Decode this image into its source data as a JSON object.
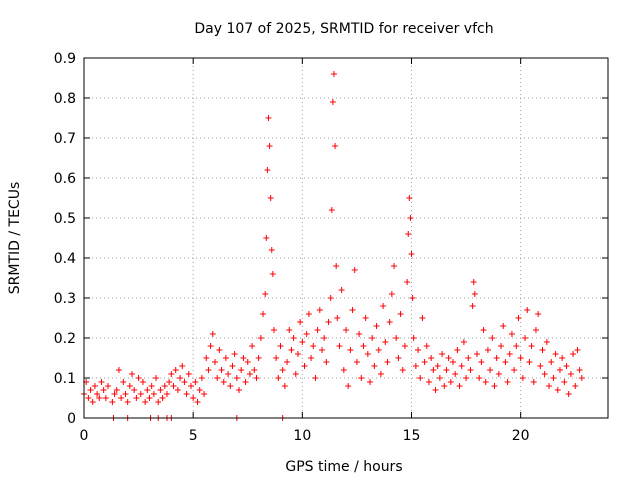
{
  "chart_data": {
    "type": "scatter",
    "title": "Day 107 of 2025, SRMTID for receiver vfch",
    "xlabel": "GPS time / hours",
    "ylabel": "SRMTID / TECUs",
    "xlim": [
      0,
      24
    ],
    "ylim": [
      0,
      0.9
    ],
    "xticks": [
      0,
      5,
      10,
      15,
      20
    ],
    "yticks": [
      0,
      0.1,
      0.2,
      0.3,
      0.4,
      0.5,
      0.6,
      0.7,
      0.8,
      0.9
    ],
    "xtick_labels": [
      "0",
      "5",
      "10",
      "15",
      "20"
    ],
    "ytick_labels": [
      "0",
      "0.1",
      "0.2",
      "0.3",
      "0.4",
      "0.5",
      "0.6",
      "0.7",
      "0.8",
      "0.9"
    ],
    "grid": true,
    "series": [
      {
        "name": "SRMTID",
        "marker": "plus",
        "color": "#ff0000",
        "points": [
          [
            0.0,
            0.06
          ],
          [
            0.1,
            0.09
          ],
          [
            0.2,
            0.05
          ],
          [
            0.3,
            0.07
          ],
          [
            0.4,
            0.04
          ],
          [
            0.5,
            0.08
          ],
          [
            0.6,
            0.06
          ],
          [
            0.7,
            0.05
          ],
          [
            0.8,
            0.09
          ],
          [
            0.9,
            0.07
          ],
          [
            1.0,
            0.05
          ],
          [
            1.1,
            0.08
          ],
          [
            1.3,
            0.04
          ],
          [
            1.4,
            0.06
          ],
          [
            1.5,
            0.07
          ],
          [
            1.6,
            0.12
          ],
          [
            1.7,
            0.05
          ],
          [
            1.8,
            0.09
          ],
          [
            1.9,
            0.06
          ],
          [
            2.0,
            0.04
          ],
          [
            2.1,
            0.08
          ],
          [
            2.2,
            0.11
          ],
          [
            2.3,
            0.07
          ],
          [
            2.4,
            0.05
          ],
          [
            2.5,
            0.1
          ],
          [
            2.6,
            0.06
          ],
          [
            2.7,
            0.09
          ],
          [
            2.8,
            0.04
          ],
          [
            2.9,
            0.07
          ],
          [
            3.0,
            0.05
          ],
          [
            3.1,
            0.08
          ],
          [
            3.2,
            0.06
          ],
          [
            3.3,
            0.1
          ],
          [
            3.4,
            0.04
          ],
          [
            3.5,
            0.07
          ],
          [
            3.6,
            0.05
          ],
          [
            3.7,
            0.08
          ],
          [
            3.8,
            0.06
          ],
          [
            3.9,
            0.09
          ],
          [
            4.0,
            0.11
          ],
          [
            4.1,
            0.08
          ],
          [
            4.2,
            0.12
          ],
          [
            4.3,
            0.07
          ],
          [
            4.4,
            0.1
          ],
          [
            4.5,
            0.13
          ],
          [
            4.6,
            0.09
          ],
          [
            4.7,
            0.06
          ],
          [
            4.8,
            0.11
          ],
          [
            4.9,
            0.08
          ],
          [
            5.0,
            0.05
          ],
          [
            5.1,
            0.09
          ],
          [
            5.2,
            0.04
          ],
          [
            5.3,
            0.07
          ],
          [
            5.4,
            0.1
          ],
          [
            5.5,
            0.06
          ],
          [
            5.6,
            0.15
          ],
          [
            5.7,
            0.12
          ],
          [
            5.8,
            0.18
          ],
          [
            5.9,
            0.21
          ],
          [
            6.0,
            0.14
          ],
          [
            6.1,
            0.1
          ],
          [
            6.2,
            0.17
          ],
          [
            6.3,
            0.12
          ],
          [
            6.4,
            0.09
          ],
          [
            6.5,
            0.15
          ],
          [
            6.6,
            0.11
          ],
          [
            6.7,
            0.08
          ],
          [
            6.8,
            0.13
          ],
          [
            6.9,
            0.16
          ],
          [
            7.0,
            0.1
          ],
          [
            7.1,
            0.07
          ],
          [
            7.2,
            0.12
          ],
          [
            7.3,
            0.15
          ],
          [
            7.4,
            0.09
          ],
          [
            7.5,
            0.14
          ],
          [
            7.6,
            0.11
          ],
          [
            7.7,
            0.18
          ],
          [
            7.8,
            0.12
          ],
          [
            7.9,
            0.1
          ],
          [
            8.0,
            0.15
          ],
          [
            8.1,
            0.2
          ],
          [
            8.2,
            0.26
          ],
          [
            8.3,
            0.31
          ],
          [
            8.35,
            0.45
          ],
          [
            8.4,
            0.62
          ],
          [
            8.45,
            0.75
          ],
          [
            8.5,
            0.68
          ],
          [
            8.55,
            0.55
          ],
          [
            8.6,
            0.42
          ],
          [
            8.65,
            0.36
          ],
          [
            8.7,
            0.22
          ],
          [
            8.8,
            0.15
          ],
          [
            8.9,
            0.1
          ],
          [
            9.0,
            0.18
          ],
          [
            9.1,
            0.12
          ],
          [
            9.2,
            0.08
          ],
          [
            9.3,
            0.14
          ],
          [
            9.4,
            0.22
          ],
          [
            9.5,
            0.17
          ],
          [
            9.6,
            0.2
          ],
          [
            9.7,
            0.11
          ],
          [
            9.8,
            0.16
          ],
          [
            9.9,
            0.24
          ],
          [
            10.0,
            0.19
          ],
          [
            10.1,
            0.13
          ],
          [
            10.2,
            0.21
          ],
          [
            10.3,
            0.26
          ],
          [
            10.4,
            0.15
          ],
          [
            10.5,
            0.18
          ],
          [
            10.6,
            0.1
          ],
          [
            10.7,
            0.22
          ],
          [
            10.8,
            0.27
          ],
          [
            10.9,
            0.17
          ],
          [
            11.0,
            0.2
          ],
          [
            11.1,
            0.14
          ],
          [
            11.2,
            0.24
          ],
          [
            11.3,
            0.3
          ],
          [
            11.35,
            0.52
          ],
          [
            11.4,
            0.79
          ],
          [
            11.45,
            0.86
          ],
          [
            11.5,
            0.68
          ],
          [
            11.55,
            0.38
          ],
          [
            11.6,
            0.25
          ],
          [
            11.7,
            0.18
          ],
          [
            11.8,
            0.32
          ],
          [
            11.9,
            0.12
          ],
          [
            12.0,
            0.22
          ],
          [
            12.1,
            0.08
          ],
          [
            12.2,
            0.17
          ],
          [
            12.3,
            0.27
          ],
          [
            12.4,
            0.37
          ],
          [
            12.5,
            0.14
          ],
          [
            12.6,
            0.21
          ],
          [
            12.7,
            0.1
          ],
          [
            12.8,
            0.18
          ],
          [
            12.9,
            0.25
          ],
          [
            13.0,
            0.16
          ],
          [
            13.1,
            0.09
          ],
          [
            13.2,
            0.2
          ],
          [
            13.3,
            0.13
          ],
          [
            13.4,
            0.23
          ],
          [
            13.5,
            0.17
          ],
          [
            13.6,
            0.11
          ],
          [
            13.7,
            0.28
          ],
          [
            13.8,
            0.19
          ],
          [
            13.9,
            0.14
          ],
          [
            14.0,
            0.24
          ],
          [
            14.1,
            0.31
          ],
          [
            14.2,
            0.38
          ],
          [
            14.3,
            0.2
          ],
          [
            14.4,
            0.15
          ],
          [
            14.5,
            0.26
          ],
          [
            14.6,
            0.12
          ],
          [
            14.7,
            0.18
          ],
          [
            14.8,
            0.34
          ],
          [
            14.85,
            0.46
          ],
          [
            14.9,
            0.55
          ],
          [
            14.95,
            0.5
          ],
          [
            15.0,
            0.41
          ],
          [
            15.05,
            0.3
          ],
          [
            15.1,
            0.2
          ],
          [
            15.2,
            0.13
          ],
          [
            15.3,
            0.17
          ],
          [
            15.4,
            0.1
          ],
          [
            15.5,
            0.25
          ],
          [
            15.6,
            0.14
          ],
          [
            15.7,
            0.18
          ],
          [
            15.8,
            0.09
          ],
          [
            15.9,
            0.15
          ],
          [
            16.0,
            0.12
          ],
          [
            16.1,
            0.07
          ],
          [
            16.2,
            0.13
          ],
          [
            16.3,
            0.1
          ],
          [
            16.4,
            0.16
          ],
          [
            16.5,
            0.08
          ],
          [
            16.6,
            0.12
          ],
          [
            16.7,
            0.15
          ],
          [
            16.8,
            0.09
          ],
          [
            16.9,
            0.14
          ],
          [
            17.0,
            0.11
          ],
          [
            17.1,
            0.17
          ],
          [
            17.2,
            0.08
          ],
          [
            17.3,
            0.13
          ],
          [
            17.4,
            0.19
          ],
          [
            17.5,
            0.1
          ],
          [
            17.6,
            0.15
          ],
          [
            17.7,
            0.12
          ],
          [
            17.8,
            0.28
          ],
          [
            17.85,
            0.34
          ],
          [
            17.9,
            0.31
          ],
          [
            18.0,
            0.16
          ],
          [
            18.1,
            0.1
          ],
          [
            18.2,
            0.14
          ],
          [
            18.3,
            0.22
          ],
          [
            18.4,
            0.09
          ],
          [
            18.5,
            0.17
          ],
          [
            18.6,
            0.12
          ],
          [
            18.7,
            0.2
          ],
          [
            18.8,
            0.08
          ],
          [
            18.9,
            0.15
          ],
          [
            19.0,
            0.11
          ],
          [
            19.1,
            0.18
          ],
          [
            19.2,
            0.23
          ],
          [
            19.3,
            0.14
          ],
          [
            19.4,
            0.09
          ],
          [
            19.5,
            0.16
          ],
          [
            19.6,
            0.21
          ],
          [
            19.7,
            0.12
          ],
          [
            19.8,
            0.18
          ],
          [
            19.9,
            0.25
          ],
          [
            20.0,
            0.15
          ],
          [
            20.1,
            0.1
          ],
          [
            20.2,
            0.2
          ],
          [
            20.3,
            0.27
          ],
          [
            20.4,
            0.14
          ],
          [
            20.5,
            0.18
          ],
          [
            20.6,
            0.09
          ],
          [
            20.7,
            0.22
          ],
          [
            20.8,
            0.26
          ],
          [
            20.9,
            0.13
          ],
          [
            21.0,
            0.17
          ],
          [
            21.1,
            0.11
          ],
          [
            21.2,
            0.19
          ],
          [
            21.3,
            0.08
          ],
          [
            21.4,
            0.14
          ],
          [
            21.5,
            0.1
          ],
          [
            21.6,
            0.16
          ],
          [
            21.7,
            0.07
          ],
          [
            21.8,
            0.12
          ],
          [
            21.9,
            0.15
          ],
          [
            22.0,
            0.09
          ],
          [
            22.1,
            0.13
          ],
          [
            22.2,
            0.06
          ],
          [
            22.3,
            0.11
          ],
          [
            22.4,
            0.16
          ],
          [
            22.5,
            0.08
          ],
          [
            22.6,
            0.17
          ],
          [
            22.7,
            0.12
          ],
          [
            22.8,
            0.1
          ],
          [
            1.35,
            0.0
          ],
          [
            2.0,
            0.0
          ],
          [
            3.05,
            0.0
          ],
          [
            3.4,
            0.0
          ],
          [
            3.8,
            0.0
          ],
          [
            4.0,
            0.0
          ],
          [
            7.0,
            0.0
          ],
          [
            9.1,
            0.0
          ]
        ]
      }
    ]
  }
}
